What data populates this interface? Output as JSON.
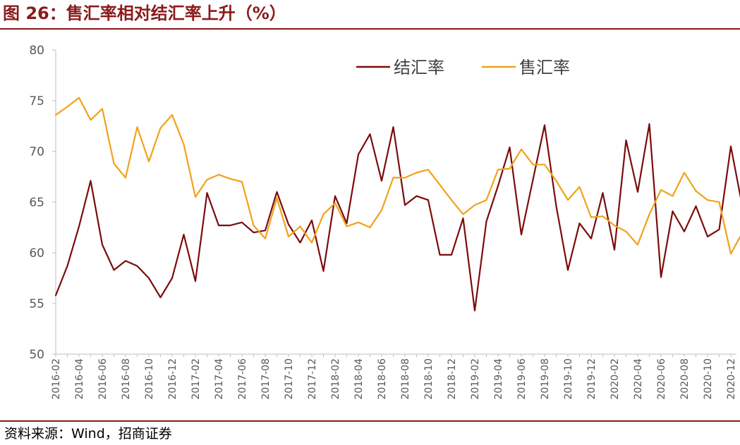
{
  "header": {
    "title": "图 26：售汇率相对结汇率上升（%）"
  },
  "footer": {
    "source": "资料来源：Wind，招商证券"
  },
  "colors": {
    "jiehui": "#7b0c0c",
    "shouhui": "#f0a21a",
    "accent": "#8b1a1a"
  },
  "chart_data": {
    "type": "line",
    "title": "售汇率相对结汇率上升（%）",
    "ylim": [
      50,
      80
    ],
    "yticks": [
      50,
      55,
      60,
      65,
      70,
      75,
      80
    ],
    "legend_position": "top-right",
    "grid": false,
    "x": [
      "2016-02",
      "2016-03",
      "2016-04",
      "2016-05",
      "2016-06",
      "2016-07",
      "2016-08",
      "2016-09",
      "2016-10",
      "2016-11",
      "2016-12",
      "2017-01",
      "2017-02",
      "2017-03",
      "2017-04",
      "2017-05",
      "2017-06",
      "2017-07",
      "2017-08",
      "2017-09",
      "2017-10",
      "2017-11",
      "2017-12",
      "2018-01",
      "2018-02",
      "2018-03",
      "2018-04",
      "2018-05",
      "2018-06",
      "2018-07",
      "2018-08",
      "2018-09",
      "2018-10",
      "2018-11",
      "2018-12",
      "2019-01",
      "2019-02",
      "2019-03",
      "2019-04",
      "2019-05",
      "2019-06",
      "2019-07",
      "2019-08",
      "2019-09",
      "2019-10",
      "2019-11",
      "2019-12",
      "2020-01",
      "2020-02",
      "2020-03",
      "2020-04",
      "2020-05",
      "2020-06",
      "2020-07",
      "2020-08",
      "2020-09",
      "2020-10",
      "2020-11",
      "2020-12",
      "2021-01"
    ],
    "xtick_labels": [
      "2016-02",
      "2016-04",
      "2016-06",
      "2016-08",
      "2016-10",
      "2016-12",
      "2017-02",
      "2017-04",
      "2017-06",
      "2017-08",
      "2017-10",
      "2017-12",
      "2018-02",
      "2018-04",
      "2018-06",
      "2018-08",
      "2018-10",
      "2018-12",
      "2019-02",
      "2019-04",
      "2019-06",
      "2019-08",
      "2019-10",
      "2019-12",
      "2020-02",
      "2020-04",
      "2020-06",
      "2020-08",
      "2020-10",
      "2020-12"
    ],
    "series": [
      {
        "name": "结汇率",
        "color": "#7b0c0c",
        "values": [
          55.8,
          58.7,
          62.6,
          67.1,
          60.8,
          58.3,
          59.2,
          58.7,
          57.5,
          55.6,
          57.5,
          61.8,
          57.2,
          65.9,
          62.7,
          62.7,
          63.0,
          62.0,
          62.2,
          66.0,
          62.8,
          61.0,
          63.2,
          58.2,
          65.6,
          62.9,
          69.7,
          71.7,
          67.1,
          72.4,
          64.7,
          65.6,
          65.2,
          59.8,
          59.8,
          63.4,
          54.3,
          63.1,
          66.6,
          70.4,
          61.8,
          67.2,
          72.6,
          64.6,
          58.3,
          62.9,
          61.4,
          65.9,
          60.3,
          71.1,
          66.0,
          72.7,
          57.6,
          64.1,
          62.1,
          64.6,
          61.6,
          62.3,
          70.5,
          64.5
        ]
      },
      {
        "name": "售汇率",
        "color": "#f0a21a",
        "values": [
          73.6,
          74.4,
          75.3,
          73.1,
          74.2,
          68.8,
          67.4,
          72.4,
          69.0,
          72.3,
          73.6,
          70.7,
          65.5,
          67.2,
          67.7,
          67.3,
          67.0,
          62.7,
          61.4,
          65.4,
          61.6,
          62.6,
          61.0,
          63.8,
          64.9,
          62.6,
          63.0,
          62.5,
          64.2,
          67.4,
          67.4,
          67.9,
          68.2,
          66.7,
          65.2,
          63.8,
          64.7,
          65.2,
          68.2,
          68.3,
          70.2,
          68.7,
          68.7,
          67.1,
          65.2,
          66.5,
          63.5,
          63.6,
          62.7,
          62.1,
          60.8,
          63.8,
          66.2,
          65.6,
          67.9,
          66.1,
          65.2,
          65.0,
          59.9,
          62.0
        ]
      }
    ]
  }
}
